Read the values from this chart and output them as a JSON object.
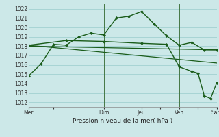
{
  "title": "Pression niveau de la mer( hPa )",
  "background_color": "#cce8e8",
  "grid_color": "#99cccc",
  "line_color": "#1a5c1a",
  "ylim": [
    1011.5,
    1022.5
  ],
  "yticks": [
    1012,
    1013,
    1014,
    1015,
    1016,
    1017,
    1018,
    1019,
    1020,
    1021,
    1022
  ],
  "day_labels": [
    "Mer",
    "",
    "Dim",
    "Jeu",
    "",
    "Ven",
    "",
    "Sam"
  ],
  "day_positions": [
    0,
    4,
    12,
    18,
    21,
    24,
    27,
    30
  ],
  "vline_positions": [
    0,
    12,
    18,
    24,
    30
  ],
  "series1_x": [
    0,
    2,
    4,
    6,
    8,
    10,
    12,
    14,
    16,
    18,
    20,
    22,
    24,
    26,
    28,
    30
  ],
  "series1_y": [
    1014.8,
    1016.1,
    1018.2,
    1018.1,
    1019.0,
    1019.4,
    1019.2,
    1021.0,
    1021.2,
    1021.7,
    1020.4,
    1019.1,
    1018.1,
    1018.4,
    1017.6,
    1017.6
  ],
  "series2_x": [
    0,
    6,
    12,
    18,
    22,
    24,
    26,
    27,
    28,
    29,
    30
  ],
  "series2_y": [
    1018.1,
    1018.6,
    1018.5,
    1018.3,
    1018.2,
    1015.8,
    1015.3,
    1015.1,
    1012.7,
    1012.4,
    1014.1
  ],
  "series3_x": [
    0,
    30
  ],
  "series3_y": [
    1018.0,
    1017.6
  ],
  "series4_x": [
    0,
    30
  ],
  "series4_y": [
    1018.1,
    1016.2
  ],
  "xmin": 0,
  "xmax": 30
}
